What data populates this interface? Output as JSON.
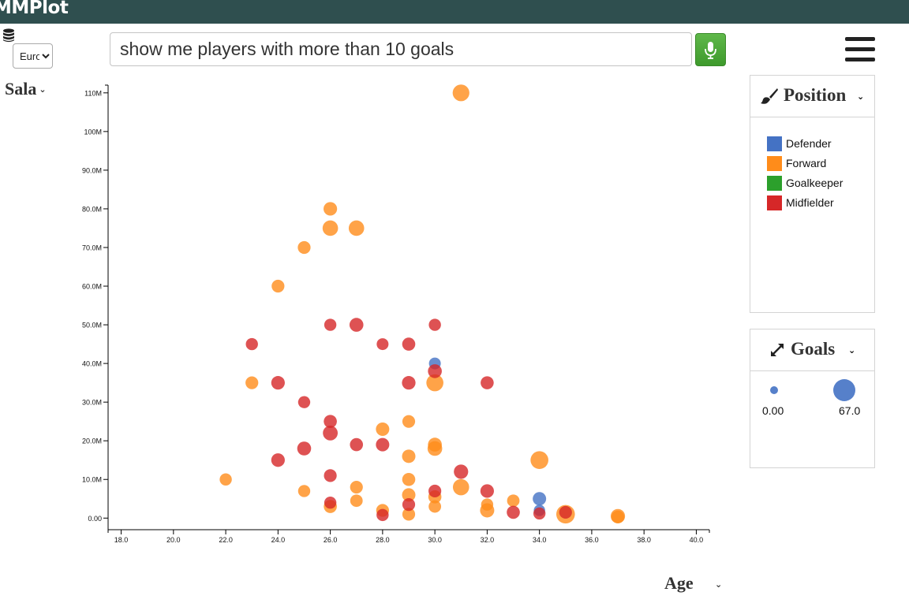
{
  "app": {
    "brand": "MMPlot"
  },
  "controls": {
    "currency_options": [
      "Euro"
    ],
    "currency_selected": "Euro",
    "query_value": "show me players with more than 10 goals",
    "y_label": "Sala",
    "x_label": "Age"
  },
  "legend": {
    "color_title": "Position",
    "size_title": "Goals",
    "size_min_label": "0.00",
    "size_max_label": "67.0"
  },
  "colors": {
    "topbar": "#2f4f4f",
    "Defender": "#4472c4",
    "Forward": "#ff8c1a",
    "Goalkeeper": "#2ca02c",
    "Midfielder": "#d62728"
  },
  "chart_data": {
    "type": "scatter",
    "x_tick_labels": [
      "18.0",
      "20.0",
      "22.0",
      "24.0",
      "26.0",
      "28.0",
      "30.0",
      "32.0",
      "34.0",
      "36.0",
      "38.0",
      "40.0"
    ],
    "y_tick_labels": [
      "0.00",
      "10.0M",
      "20.0M",
      "30.0M",
      "40.0M",
      "50.0M",
      "60.0M",
      "70.0M",
      "80.0M",
      "90.0M",
      "100M",
      "110M"
    ],
    "xlim": [
      17.5,
      40.5
    ],
    "ylim": [
      -3,
      112
    ],
    "size_range": [
      0,
      67
    ],
    "legend_placement": "right",
    "categories": [
      "Defender",
      "Forward",
      "Goalkeeper",
      "Midfielder"
    ],
    "series": [
      {
        "name": "Defender",
        "points": [
          {
            "x": 30,
            "y": 40,
            "goals": 5
          },
          {
            "x": 34,
            "y": 5,
            "goals": 10
          },
          {
            "x": 34,
            "y": 2,
            "goals": 4
          }
        ]
      },
      {
        "name": "Forward",
        "points": [
          {
            "x": 31,
            "y": 110,
            "goals": 26
          },
          {
            "x": 26,
            "y": 80,
            "goals": 11
          },
          {
            "x": 26,
            "y": 75,
            "goals": 19
          },
          {
            "x": 27,
            "y": 75,
            "goals": 19
          },
          {
            "x": 25,
            "y": 70,
            "goals": 8
          },
          {
            "x": 24,
            "y": 60,
            "goals": 8
          },
          {
            "x": 23,
            "y": 35,
            "goals": 8
          },
          {
            "x": 30,
            "y": 35,
            "goals": 28
          },
          {
            "x": 29,
            "y": 25,
            "goals": 8
          },
          {
            "x": 28,
            "y": 23,
            "goals": 10
          },
          {
            "x": 30,
            "y": 19,
            "goals": 12
          },
          {
            "x": 30,
            "y": 18,
            "goals": 15
          },
          {
            "x": 29,
            "y": 16,
            "goals": 10
          },
          {
            "x": 34,
            "y": 15,
            "goals": 33
          },
          {
            "x": 22,
            "y": 10,
            "goals": 6
          },
          {
            "x": 29,
            "y": 10,
            "goals": 9
          },
          {
            "x": 31,
            "y": 8,
            "goals": 23
          },
          {
            "x": 27,
            "y": 8,
            "goals": 8
          },
          {
            "x": 25,
            "y": 7,
            "goals": 6
          },
          {
            "x": 29,
            "y": 6,
            "goals": 10
          },
          {
            "x": 30,
            "y": 5.5,
            "goals": 9
          },
          {
            "x": 27,
            "y": 4.5,
            "goals": 7
          },
          {
            "x": 33,
            "y": 4.5,
            "goals": 7
          },
          {
            "x": 32,
            "y": 3.5,
            "goals": 6
          },
          {
            "x": 26,
            "y": 3,
            "goals": 9
          },
          {
            "x": 30,
            "y": 3,
            "goals": 7
          },
          {
            "x": 28,
            "y": 2,
            "goals": 8
          },
          {
            "x": 32,
            "y": 2,
            "goals": 13
          },
          {
            "x": 35,
            "y": 1,
            "goals": 38
          },
          {
            "x": 29,
            "y": 1,
            "goals": 8
          },
          {
            "x": 37,
            "y": 0.5,
            "goals": 14
          },
          {
            "x": 37,
            "y": 0.3,
            "goals": 8
          }
        ]
      },
      {
        "name": "Goalkeeper",
        "points": []
      },
      {
        "name": "Midfielder",
        "points": [
          {
            "x": 26,
            "y": 50,
            "goals": 6
          },
          {
            "x": 27,
            "y": 50,
            "goals": 12
          },
          {
            "x": 30,
            "y": 50,
            "goals": 6
          },
          {
            "x": 23,
            "y": 45,
            "goals": 6
          },
          {
            "x": 28,
            "y": 45,
            "goals": 5
          },
          {
            "x": 29,
            "y": 45,
            "goals": 9
          },
          {
            "x": 30,
            "y": 38,
            "goals": 12
          },
          {
            "x": 24,
            "y": 35,
            "goals": 11
          },
          {
            "x": 29,
            "y": 35,
            "goals": 11
          },
          {
            "x": 32,
            "y": 35,
            "goals": 9
          },
          {
            "x": 25,
            "y": 30,
            "goals": 6
          },
          {
            "x": 26,
            "y": 25,
            "goals": 9
          },
          {
            "x": 26,
            "y": 22,
            "goals": 16
          },
          {
            "x": 27,
            "y": 19,
            "goals": 9
          },
          {
            "x": 28,
            "y": 19,
            "goals": 10
          },
          {
            "x": 25,
            "y": 18,
            "goals": 12
          },
          {
            "x": 24,
            "y": 15,
            "goals": 11
          },
          {
            "x": 31,
            "y": 12,
            "goals": 14
          },
          {
            "x": 26,
            "y": 11,
            "goals": 8
          },
          {
            "x": 30,
            "y": 7,
            "goals": 8
          },
          {
            "x": 32,
            "y": 7,
            "goals": 11
          },
          {
            "x": 26,
            "y": 4,
            "goals": 6
          },
          {
            "x": 29,
            "y": 3.5,
            "goals": 8
          },
          {
            "x": 33,
            "y": 1.5,
            "goals": 9
          },
          {
            "x": 34,
            "y": 1.2,
            "goals": 6
          },
          {
            "x": 35,
            "y": 1.5,
            "goals": 8
          },
          {
            "x": 28,
            "y": 0.8,
            "goals": 6
          }
        ]
      }
    ]
  }
}
